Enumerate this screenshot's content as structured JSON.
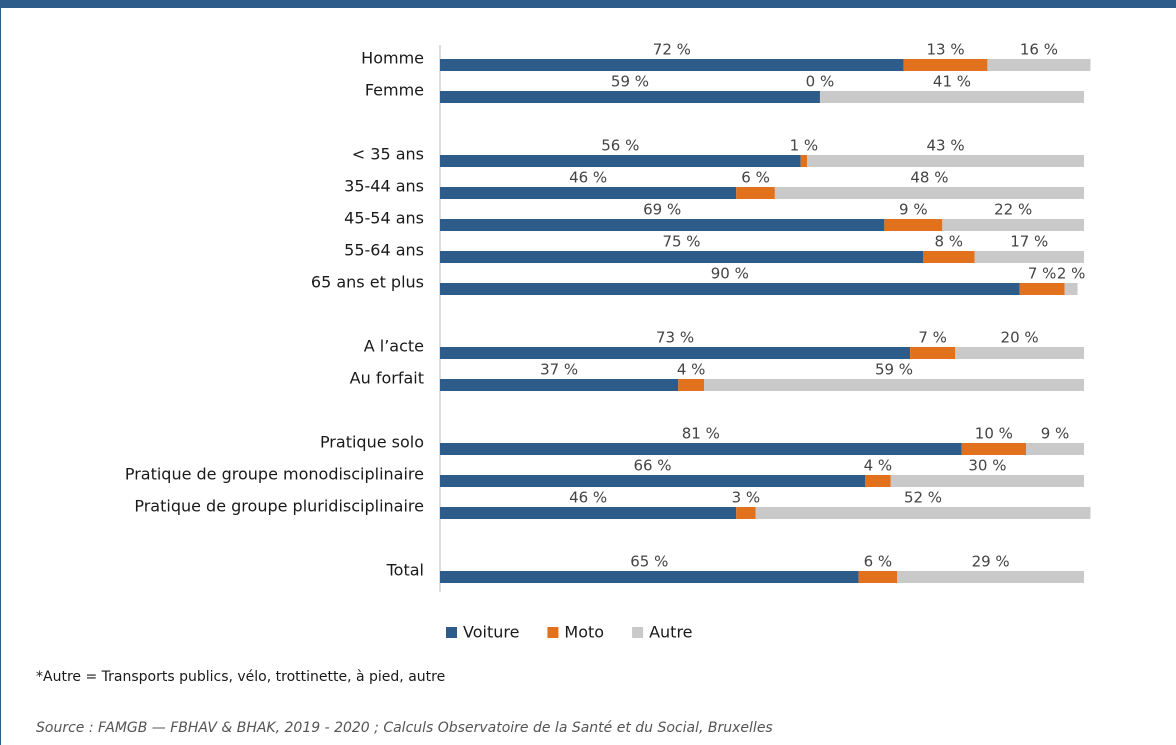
{
  "chart_data": {
    "type": "stacked_bar_horizontal",
    "categories": [
      "Homme",
      "Femme",
      null,
      "< 35 ans",
      "35-44 ans",
      "45-54 ans",
      "55-64 ans",
      "65 ans et plus",
      null,
      "A l’acte",
      "Au forfait",
      null,
      "Pratique solo",
      "Pratique de groupe monodisciplinaire",
      "Pratique de groupe pluridisciplinaire",
      null,
      "Total"
    ],
    "series": [
      {
        "name": "Voiture",
        "color": "#2e5c8a",
        "values": [
          72,
          59,
          null,
          56,
          46,
          69,
          75,
          90,
          null,
          73,
          37,
          null,
          81,
          66,
          46,
          null,
          65
        ],
        "value_labels": [
          "72 %",
          "59 %",
          null,
          "56 %",
          "46 %",
          "69 %",
          "75 %",
          "90 %",
          null,
          "73 %",
          "37 %",
          null,
          "81 %",
          "66 %",
          "46 %",
          null,
          "65 %"
        ]
      },
      {
        "name": "Moto",
        "color": "#e2711d",
        "values": [
          13,
          0,
          null,
          1,
          6,
          9,
          8,
          7,
          null,
          7,
          4,
          null,
          10,
          4,
          3,
          null,
          6
        ],
        "value_labels": [
          "13 %",
          "0 %",
          null,
          "1 %",
          "6 %",
          "9 %",
          "8 %",
          "7 %",
          null,
          "7 %",
          "4 %",
          null,
          "10 %",
          "4 %",
          "3 %",
          null,
          "6 %"
        ]
      },
      {
        "name": "Autre",
        "color": "#c9c9c9",
        "values": [
          16,
          41,
          null,
          43,
          48,
          22,
          17,
          2,
          null,
          20,
          59,
          null,
          9,
          30,
          52,
          null,
          29
        ],
        "value_labels": [
          "16 %",
          "41 %",
          null,
          "43 %",
          "48 %",
          "22 %",
          "17 %",
          "2 %",
          null,
          "20 %",
          "59 %",
          null,
          "9 %",
          "30 %",
          "52 %",
          null,
          "29 %"
        ]
      }
    ],
    "xlim": [
      0,
      100
    ],
    "footnote": "*Autre = Transports publics, vélo, trottinette, à pied, autre",
    "source": "Source : FAMGB — FBHAV & BHAK, 2019 - 2020 ; Calculs Observatoire de la Santé et du Social, Bruxelles"
  }
}
